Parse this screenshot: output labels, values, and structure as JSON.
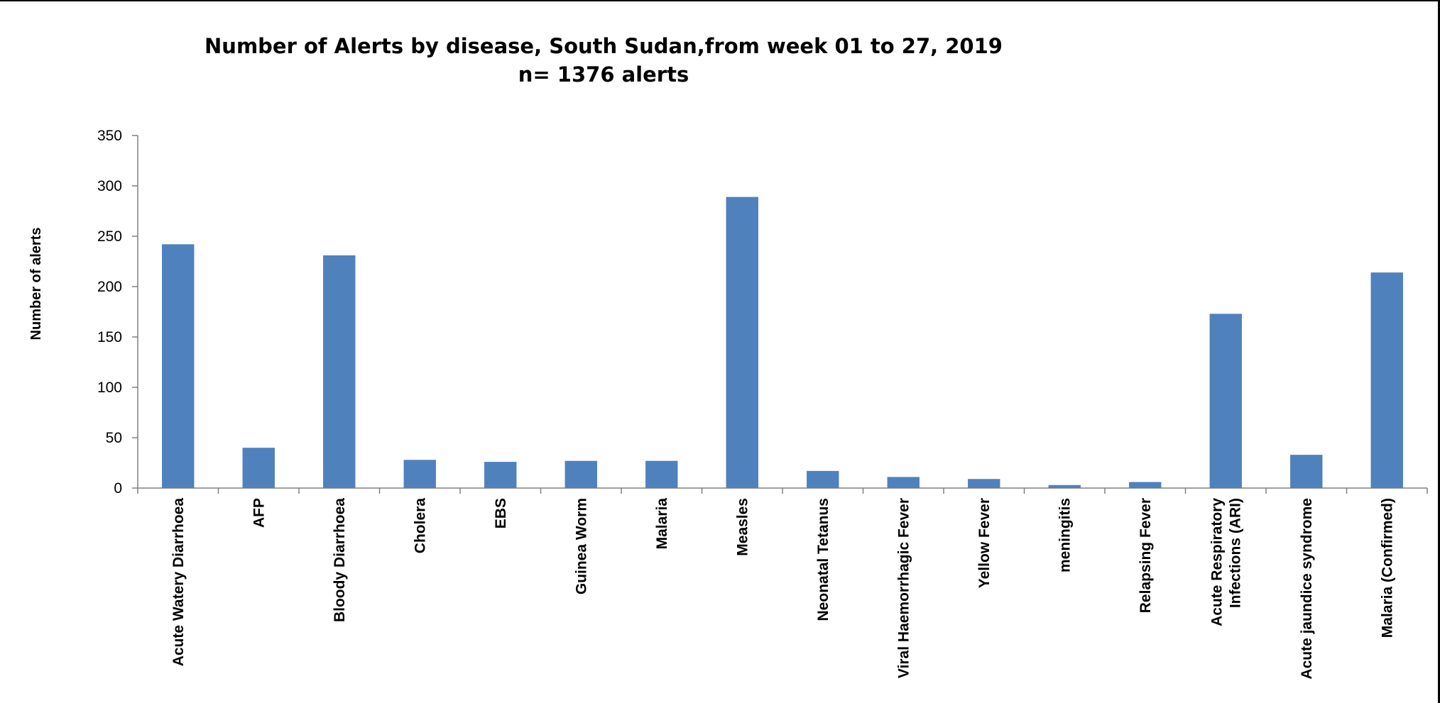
{
  "chart_data": {
    "type": "bar",
    "title": "Number of Alerts by disease, South Sudan,from  week 01 to 27, 2019",
    "subtitle": "n= 1376 alerts",
    "xlabel": "",
    "ylabel": "Number of alerts",
    "ylim": [
      0,
      350
    ],
    "yticks": [
      0,
      50,
      100,
      150,
      200,
      250,
      300,
      350
    ],
    "grid": false,
    "legend": "none",
    "bar_color": "#4f81bd",
    "categories": [
      [
        "Acute Watery Diarrhoea"
      ],
      [
        "AFP"
      ],
      [
        "Bloody Diarrhoea"
      ],
      [
        "Cholera"
      ],
      [
        "EBS"
      ],
      [
        "Guinea Worm"
      ],
      [
        "Malaria"
      ],
      [
        "Measles"
      ],
      [
        "Neonatal Tetanus"
      ],
      [
        "Viral Haemorrhagic Fever"
      ],
      [
        "Yellow Fever"
      ],
      [
        "meningitis"
      ],
      [
        "Relapsing Fever"
      ],
      [
        "Acute Respiratory",
        "Infections (ARI)"
      ],
      [
        "Acute jaundice syndrome"
      ],
      [
        "Malaria (Confirmed)"
      ]
    ],
    "values": [
      242,
      40,
      231,
      28,
      26,
      27,
      27,
      289,
      17,
      11,
      9,
      3,
      6,
      173,
      33,
      214
    ]
  }
}
